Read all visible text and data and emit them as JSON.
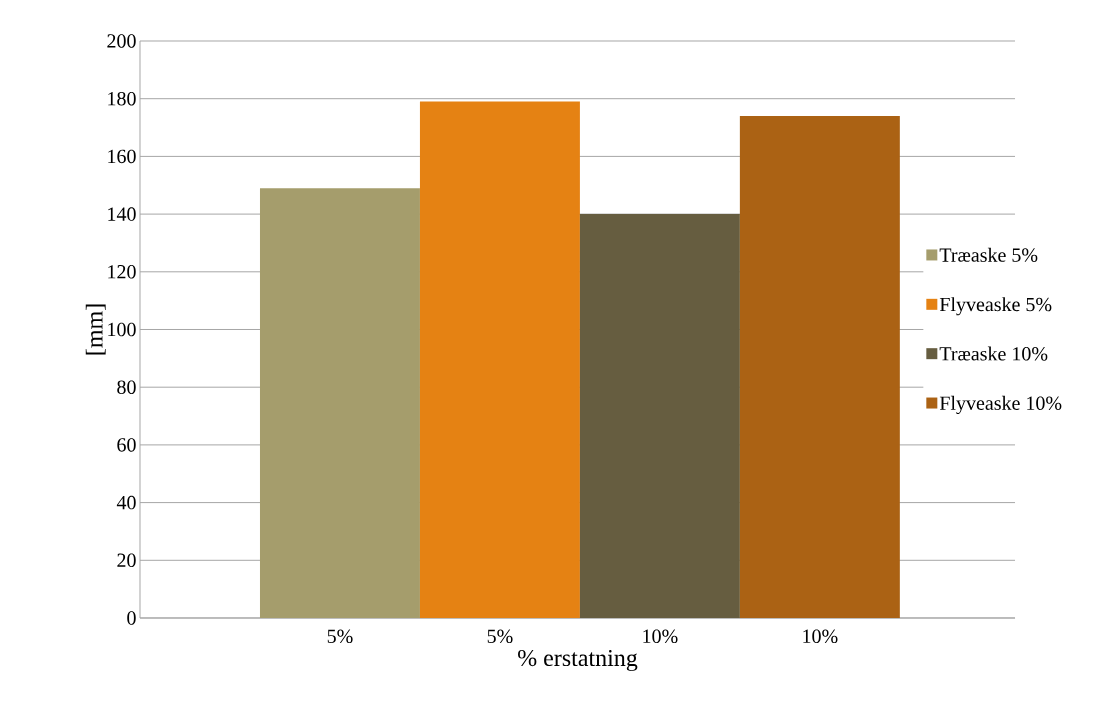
{
  "chart_data": {
    "type": "bar",
    "xlabel": "% erstatning",
    "ylabel": "[mm]",
    "categories": [
      "5%",
      "5%",
      "10%",
      "10%"
    ],
    "series": [
      {
        "name": "Træaske 5%",
        "color": "#a59d6c",
        "values": [
          149,
          null,
          null,
          null
        ]
      },
      {
        "name": "Flyveaske 5%",
        "color": "#e58213",
        "values": [
          null,
          179,
          null,
          null
        ]
      },
      {
        "name": "Træaske 10%",
        "color": "#665d40",
        "values": [
          null,
          null,
          140,
          null
        ]
      },
      {
        "name": "Flyveaske 10%",
        "color": "#ab6214",
        "values": [
          null,
          null,
          null,
          174
        ]
      }
    ],
    "ylim": [
      0,
      200
    ],
    "yticks": [
      0,
      20,
      40,
      60,
      80,
      100,
      120,
      140,
      160,
      180,
      200
    ],
    "grid": "y",
    "legend": "right"
  }
}
